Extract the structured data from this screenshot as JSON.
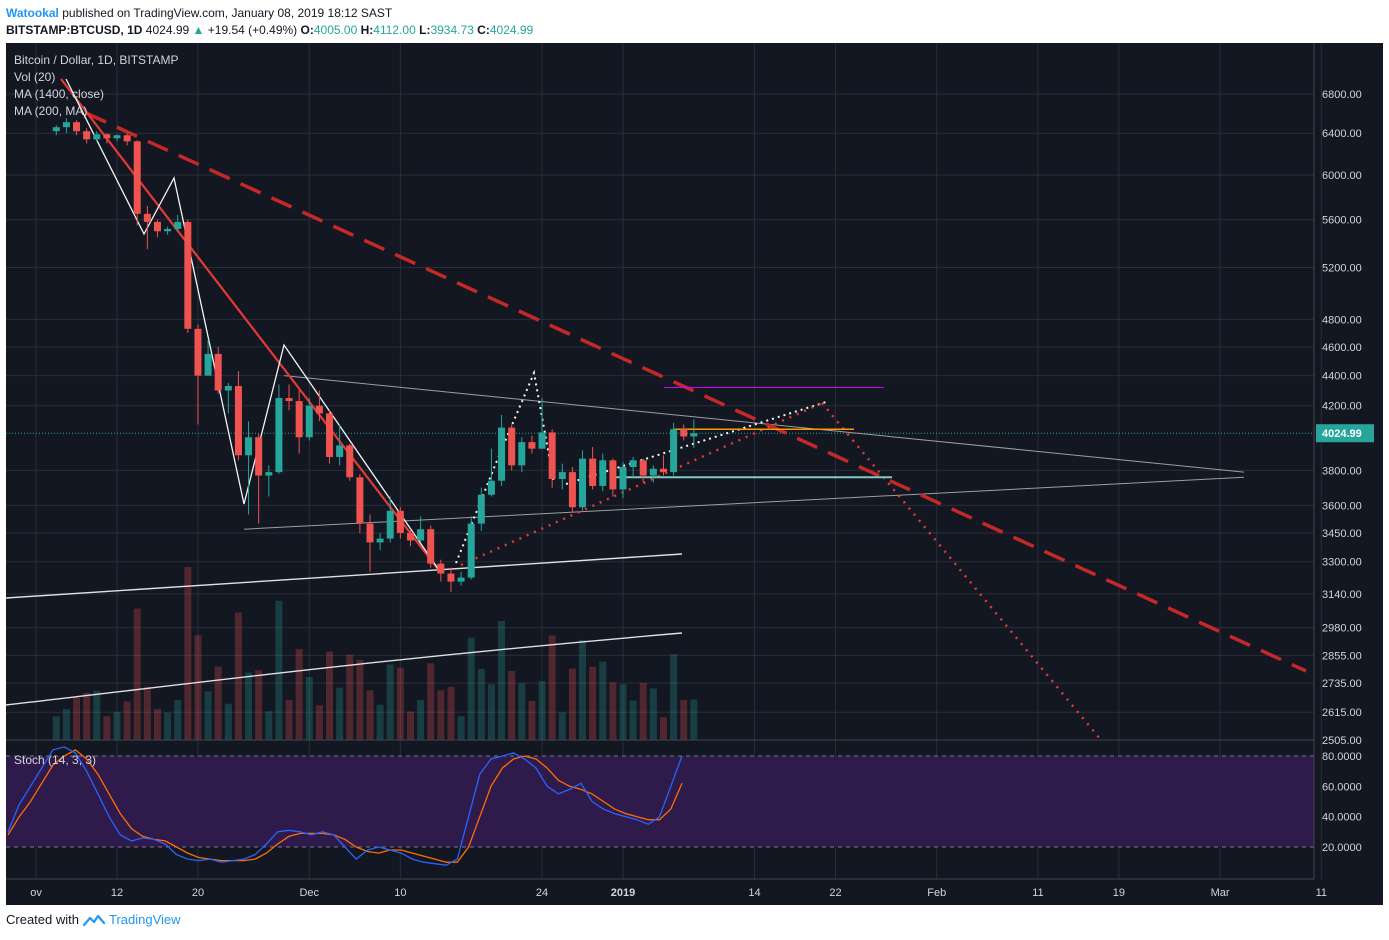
{
  "header": {
    "author": "Watookal",
    "published": "published on TradingView.com, January 08, 2019 18:12 SAST",
    "symbol": "BITSTAMP:BTCUSD, 1D",
    "price": "4024.99",
    "change_arrow": "▲",
    "change": "+19.54 (+0.49%)",
    "o_label": "O:",
    "o": "4005.00",
    "h_label": "H:",
    "h": "4112.00",
    "l_label": "L:",
    "l": "3934.73",
    "c_label": "C:",
    "c": "4024.99"
  },
  "legend": {
    "title": "Bitcoin / Dollar, 1D, BITSTAMP",
    "vol": "Vol (20)",
    "ma1": "MA (1400, close)",
    "ma2": "MA (200, MA)"
  },
  "stoch_label": "Stoch (14, 3, 3)",
  "footer": {
    "created": "Created with",
    "brand": "TradingView"
  },
  "colors": {
    "background": "#131722",
    "up": "#26a69a",
    "down": "#ef5350",
    "grid": "#2a2e39",
    "trend_red": "#c62828",
    "stoch_band": "#2f1b4e",
    "k_line": "#2962ff",
    "d_line": "#ff6d00"
  },
  "chart_data": {
    "type": "candlestick",
    "symbol": "BITSTAMP:BTCUSD",
    "timeframe": "1D",
    "price_axis": {
      "ticks": [
        "6800.00",
        "6400.00",
        "6000.00",
        "5600.00",
        "5200.00",
        "4800.00",
        "4600.00",
        "4400.00",
        "4200.00",
        "4024.99",
        "3800.00",
        "3600.00",
        "3450.00",
        "3300.00",
        "3140.00",
        "2980.00",
        "2855.00",
        "2735.00",
        "2615.00",
        "2505.00"
      ],
      "scale": "log",
      "last_price": "4024.99"
    },
    "stoch_axis": {
      "ticks": [
        "80.0000",
        "60.0000",
        "40.0000",
        "20.0000"
      ],
      "range": [
        0,
        100
      ],
      "bands": [
        20,
        80
      ]
    },
    "time_axis": {
      "ticks": [
        "ov",
        "12",
        "20",
        "Dec",
        "10",
        "24",
        "2019",
        "14",
        "22",
        "Feb",
        "11",
        "19",
        "Mar",
        "11"
      ]
    },
    "candles": [
      {
        "date": "2018-11-06",
        "o": 6420,
        "h": 6480,
        "l": 6380,
        "c": 6460
      },
      {
        "date": "2018-11-07",
        "o": 6460,
        "h": 6550,
        "l": 6400,
        "c": 6510
      },
      {
        "date": "2018-11-08",
        "o": 6510,
        "h": 6530,
        "l": 6380,
        "c": 6420
      },
      {
        "date": "2018-11-09",
        "o": 6420,
        "h": 6450,
        "l": 6300,
        "c": 6340
      },
      {
        "date": "2018-11-10",
        "o": 6340,
        "h": 6420,
        "l": 6320,
        "c": 6390
      },
      {
        "date": "2018-11-11",
        "o": 6390,
        "h": 6400,
        "l": 6300,
        "c": 6350
      },
      {
        "date": "2018-11-12",
        "o": 6350,
        "h": 6390,
        "l": 6320,
        "c": 6380
      },
      {
        "date": "2018-11-13",
        "o": 6380,
        "h": 6400,
        "l": 6280,
        "c": 6320
      },
      {
        "date": "2018-11-14",
        "o": 6320,
        "h": 6330,
        "l": 5550,
        "c": 5650
      },
      {
        "date": "2018-11-15",
        "o": 5650,
        "h": 5720,
        "l": 5350,
        "c": 5580
      },
      {
        "date": "2018-11-16",
        "o": 5580,
        "h": 5600,
        "l": 5450,
        "c": 5500
      },
      {
        "date": "2018-11-17",
        "o": 5500,
        "h": 5540,
        "l": 5470,
        "c": 5520
      },
      {
        "date": "2018-11-18",
        "o": 5520,
        "h": 5640,
        "l": 5500,
        "c": 5580
      },
      {
        "date": "2018-11-19",
        "o": 5580,
        "h": 5600,
        "l": 4700,
        "c": 4730
      },
      {
        "date": "2018-11-20",
        "o": 4730,
        "h": 4760,
        "l": 4080,
        "c": 4400
      },
      {
        "date": "2018-11-21",
        "o": 4400,
        "h": 4650,
        "l": 4400,
        "c": 4550
      },
      {
        "date": "2018-11-22",
        "o": 4550,
        "h": 4600,
        "l": 4280,
        "c": 4300
      },
      {
        "date": "2018-11-23",
        "o": 4300,
        "h": 4350,
        "l": 4150,
        "c": 4330
      },
      {
        "date": "2018-11-24",
        "o": 4330,
        "h": 4430,
        "l": 3860,
        "c": 3890
      },
      {
        "date": "2018-11-25",
        "o": 3890,
        "h": 4100,
        "l": 3550,
        "c": 4000
      },
      {
        "date": "2018-11-26",
        "o": 4000,
        "h": 4020,
        "l": 3500,
        "c": 3770
      },
      {
        "date": "2018-11-27",
        "o": 3770,
        "h": 3830,
        "l": 3650,
        "c": 3790
      },
      {
        "date": "2018-11-28",
        "o": 3790,
        "h": 4340,
        "l": 3780,
        "c": 4250
      },
      {
        "date": "2018-11-29",
        "o": 4250,
        "h": 4340,
        "l": 4170,
        "c": 4230
      },
      {
        "date": "2018-11-30",
        "o": 4230,
        "h": 4300,
        "l": 3900,
        "c": 4000
      },
      {
        "date": "2018-12-01",
        "o": 4000,
        "h": 4250,
        "l": 3980,
        "c": 4200
      },
      {
        "date": "2018-12-02",
        "o": 4200,
        "h": 4300,
        "l": 4100,
        "c": 4150
      },
      {
        "date": "2018-12-03",
        "o": 4150,
        "h": 4170,
        "l": 3840,
        "c": 3880
      },
      {
        "date": "2018-12-04",
        "o": 3880,
        "h": 4080,
        "l": 3830,
        "c": 3950
      },
      {
        "date": "2018-12-05",
        "o": 3950,
        "h": 3960,
        "l": 3740,
        "c": 3760
      },
      {
        "date": "2018-12-06",
        "o": 3760,
        "h": 3780,
        "l": 3450,
        "c": 3500
      },
      {
        "date": "2018-12-07",
        "o": 3500,
        "h": 3550,
        "l": 3250,
        "c": 3400
      },
      {
        "date": "2018-12-08",
        "o": 3400,
        "h": 3450,
        "l": 3360,
        "c": 3420
      },
      {
        "date": "2018-12-09",
        "o": 3420,
        "h": 3650,
        "l": 3400,
        "c": 3570
      },
      {
        "date": "2018-12-10",
        "o": 3570,
        "h": 3590,
        "l": 3420,
        "c": 3450
      },
      {
        "date": "2018-12-11",
        "o": 3450,
        "h": 3470,
        "l": 3380,
        "c": 3410
      },
      {
        "date": "2018-12-12",
        "o": 3410,
        "h": 3540,
        "l": 3400,
        "c": 3470
      },
      {
        "date": "2018-12-13",
        "o": 3470,
        "h": 3490,
        "l": 3270,
        "c": 3290
      },
      {
        "date": "2018-12-14",
        "o": 3290,
        "h": 3310,
        "l": 3200,
        "c": 3240
      },
      {
        "date": "2018-12-15",
        "o": 3240,
        "h": 3270,
        "l": 3150,
        "c": 3200
      },
      {
        "date": "2018-12-16",
        "o": 3200,
        "h": 3250,
        "l": 3180,
        "c": 3220
      },
      {
        "date": "2018-12-17",
        "o": 3220,
        "h": 3540,
        "l": 3210,
        "c": 3500
      },
      {
        "date": "2018-12-18",
        "o": 3500,
        "h": 3700,
        "l": 3460,
        "c": 3660
      },
      {
        "date": "2018-12-19",
        "o": 3660,
        "h": 3930,
        "l": 3650,
        "c": 3740
      },
      {
        "date": "2018-12-20",
        "o": 3740,
        "h": 4140,
        "l": 3710,
        "c": 4060
      },
      {
        "date": "2018-12-21",
        "o": 4060,
        "h": 4080,
        "l": 3800,
        "c": 3830
      },
      {
        "date": "2018-12-22",
        "o": 3830,
        "h": 4000,
        "l": 3790,
        "c": 3970
      },
      {
        "date": "2018-12-23",
        "o": 3970,
        "h": 4010,
        "l": 3900,
        "c": 3930
      },
      {
        "date": "2018-12-24",
        "o": 3930,
        "h": 4250,
        "l": 3930,
        "c": 4030
      },
      {
        "date": "2018-12-25",
        "o": 4030,
        "h": 4050,
        "l": 3700,
        "c": 3750
      },
      {
        "date": "2018-12-26",
        "o": 3750,
        "h": 3840,
        "l": 3690,
        "c": 3790
      },
      {
        "date": "2018-12-27",
        "o": 3790,
        "h": 3820,
        "l": 3560,
        "c": 3590
      },
      {
        "date": "2018-12-28",
        "o": 3590,
        "h": 3920,
        "l": 3570,
        "c": 3870
      },
      {
        "date": "2018-12-29",
        "o": 3870,
        "h": 3940,
        "l": 3690,
        "c": 3710
      },
      {
        "date": "2018-12-30",
        "o": 3710,
        "h": 3900,
        "l": 3680,
        "c": 3860
      },
      {
        "date": "2018-12-31",
        "o": 3860,
        "h": 3870,
        "l": 3650,
        "c": 3690
      },
      {
        "date": "2019-01-01",
        "o": 3690,
        "h": 3850,
        "l": 3640,
        "c": 3820
      },
      {
        "date": "2019-01-02",
        "o": 3820,
        "h": 3880,
        "l": 3760,
        "c": 3860
      },
      {
        "date": "2019-01-03",
        "o": 3860,
        "h": 3870,
        "l": 3730,
        "c": 3770
      },
      {
        "date": "2019-01-04",
        "o": 3770,
        "h": 3830,
        "l": 3730,
        "c": 3810
      },
      {
        "date": "2019-01-05",
        "o": 3810,
        "h": 3890,
        "l": 3770,
        "c": 3790
      },
      {
        "date": "2019-01-06",
        "o": 3790,
        "h": 4090,
        "l": 3770,
        "c": 4050
      },
      {
        "date": "2019-01-07",
        "o": 4050,
        "h": 4080,
        "l": 3980,
        "c": 4005
      },
      {
        "date": "2019-01-08",
        "o": 4005,
        "h": 4112,
        "l": 3934.73,
        "c": 4024.99
      }
    ],
    "stoch": {
      "k": [
        30,
        48,
        60,
        72,
        84,
        86,
        82,
        70,
        55,
        40,
        28,
        24,
        26,
        25,
        22,
        15,
        12,
        11,
        12,
        10,
        11,
        12,
        15,
        22,
        30,
        31,
        30,
        28,
        30,
        28,
        20,
        12,
        18,
        20,
        18,
        16,
        12,
        10,
        9,
        8,
        12,
        40,
        68,
        78,
        80,
        82,
        78,
        72,
        60,
        55,
        58,
        62,
        50,
        45,
        42,
        40,
        38,
        35,
        40,
        60,
        80
      ],
      "d": [
        28,
        40,
        50,
        62,
        74,
        80,
        84,
        78,
        68,
        55,
        42,
        32,
        27,
        25,
        24,
        20,
        16,
        13,
        12,
        11,
        11,
        11,
        12,
        16,
        22,
        27,
        29,
        29,
        29,
        28,
        25,
        20,
        17,
        16,
        18,
        18,
        16,
        14,
        12,
        10,
        10,
        20,
        40,
        60,
        72,
        78,
        80,
        78,
        72,
        64,
        60,
        58,
        55,
        50,
        45,
        42,
        40,
        38,
        38,
        45,
        62
      ]
    }
  }
}
